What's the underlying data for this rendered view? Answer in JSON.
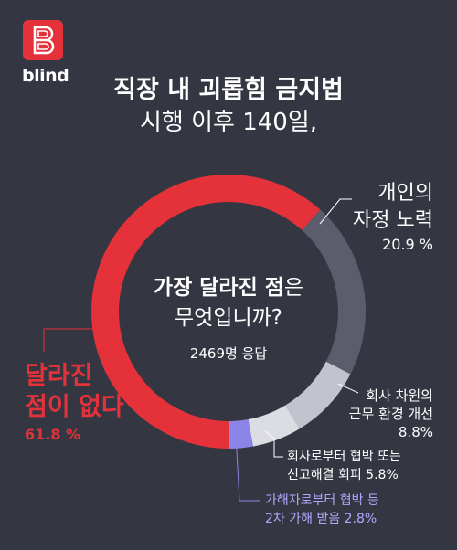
{
  "brand": {
    "name": "blind",
    "logo_letter": "B"
  },
  "header": {
    "title_line1": "직장 내 괴롭힘 금지법",
    "title_line2": "시행 이후 140일,"
  },
  "center": {
    "q_bold": "가장 달라진 점",
    "q_rest": "은",
    "q_line2": "무엇입니까?",
    "respondents": "2469명 응답"
  },
  "colors": {
    "background": "#343742",
    "accent_red": "#e5323a",
    "slate": "#5b5d6d",
    "light": "#c2c3cc",
    "lighter": "#dcdce3",
    "lavender": "#8c84e6"
  },
  "chart_data": {
    "type": "pie",
    "subtype": "donut",
    "series": [
      {
        "label": "개인의 자정 노력",
        "label_lines": [
          "개인의",
          "자정 노력"
        ],
        "value": 20.9,
        "pct_text": "20.9 %",
        "color": "#5b5d6d"
      },
      {
        "label": "회사 차원의 근무 환경 개선",
        "label_lines": [
          "회사 차원의",
          "근무 환경 개선"
        ],
        "value": 8.8,
        "pct_text": "8.8%",
        "color": "#c2c3cc"
      },
      {
        "label": "회사로부터 협박 또는 신고해결 회피",
        "label_lines": [
          "회사로부터 협박 또는",
          "신고해결 회피 5.8%"
        ],
        "value": 5.8,
        "pct_text": "5.8%",
        "color": "#dcdce3"
      },
      {
        "label": "가해자로부터 협박 등 2차 가해 받음",
        "label_lines": [
          "가해자로부터 협박 등",
          "2차 가해 받음 2.8%"
        ],
        "value": 2.8,
        "pct_text": "2.8%",
        "color": "#8c84e6"
      },
      {
        "label": "달라진 점이 없다",
        "label_lines": [
          "달라진",
          "점이 없다"
        ],
        "value": 61.8,
        "pct_text": "61.8 %",
        "color": "#e5323a"
      }
    ]
  }
}
